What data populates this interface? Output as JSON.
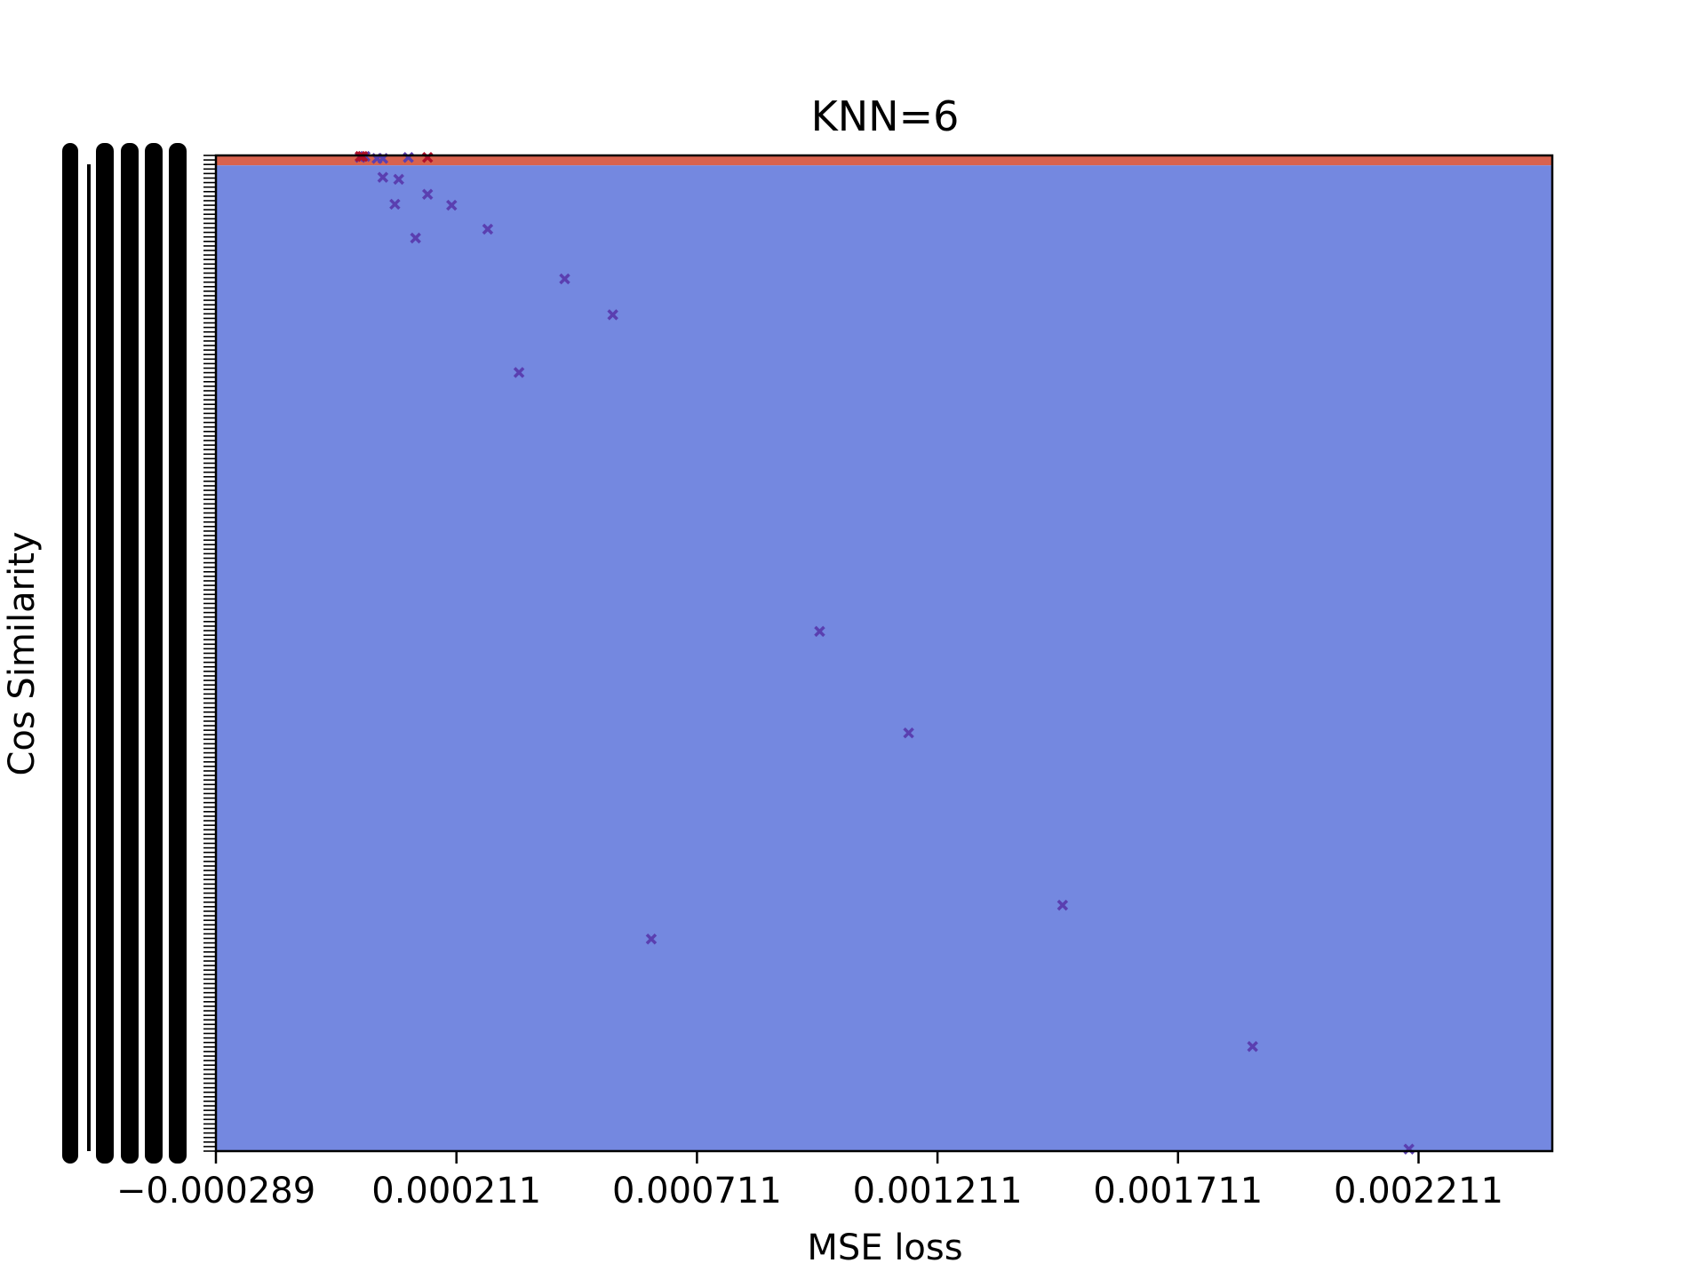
{
  "chart_data": {
    "type": "scatter",
    "title": "KNN=6",
    "xlabel": "MSE loss",
    "ylabel": "Cos Similarity",
    "xlim": [
      -0.000289,
      0.002489
    ],
    "ylim": [
      0,
      1
    ],
    "x_ticks": [
      -0.000289,
      0.000211,
      0.000711,
      0.001211,
      0.001711,
      0.002211
    ],
    "x_tick_labels": [
      "−0.000289",
      "0.000211",
      "0.000711",
      "0.001211",
      "0.001711",
      "0.002211"
    ],
    "y_tick_labels_note": "",
    "background_regions": [
      {
        "class": "red",
        "color": "#d8624e",
        "y_from": 0.99,
        "y_to": 1.0
      },
      {
        "class": "blue",
        "color": "#7488e0",
        "y_from": 0.0,
        "y_to": 0.99
      }
    ],
    "series": [
      {
        "color": "#5a3fb0",
        "marker": "x",
        "points": [
          [
            1.1e-05,
            0.998
          ],
          [
            2.1e-05,
            0.999
          ],
          [
            4.6e-05,
            0.997
          ],
          [
            5.8e-05,
            0.997
          ],
          [
            5.8e-05,
            0.978
          ],
          [
            8.3e-05,
            0.951
          ],
          [
            9.1e-05,
            0.976
          ],
          [
            0.000111,
            0.998
          ],
          [
            0.000126,
            0.917
          ],
          [
            0.000151,
            0.961
          ],
          [
            0.000201,
            0.95
          ],
          [
            0.000276,
            0.926
          ],
          [
            0.000341,
            0.782
          ],
          [
            0.000436,
            0.876
          ],
          [
            0.000536,
            0.84
          ],
          [
            0.000616,
            0.213
          ],
          [
            0.000966,
            0.522
          ],
          [
            0.001151,
            0.42
          ],
          [
            0.001471,
            0.247
          ],
          [
            0.001866,
            0.105
          ],
          [
            0.002191,
            0.002
          ]
        ]
      },
      {
        "color": "#b0102a",
        "marker": "x",
        "points": [
          [
            1.1e-05,
            0.999
          ],
          [
            1.6e-05,
            0.999
          ],
          [
            0.000151,
            0.998
          ]
        ]
      }
    ],
    "grid": false,
    "legend": "none"
  }
}
